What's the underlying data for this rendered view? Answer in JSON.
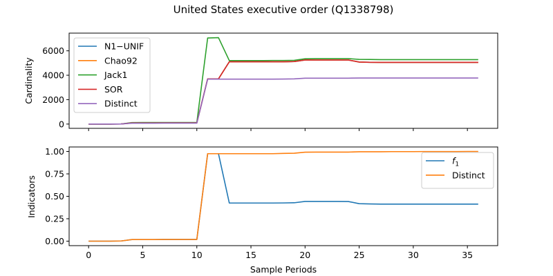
{
  "figure": {
    "title": "United States executive order (Q1338798)"
  },
  "chart_data": [
    {
      "type": "line",
      "ylabel": "Cardinality",
      "xlabel": "",
      "xlim": [
        -1.8,
        37.8
      ],
      "ylim": [
        -350,
        7450
      ],
      "xticks": [
        0,
        5,
        10,
        15,
        20,
        25,
        30,
        35
      ],
      "show_xtick_labels": false,
      "yticks": [
        0,
        2000,
        4000,
        6000
      ],
      "ytick_labels": [
        "0",
        "2000",
        "4000",
        "6000"
      ],
      "legend_position": "upper-left",
      "grid": false,
      "x": [
        0,
        1,
        2,
        3,
        4,
        5,
        6,
        7,
        8,
        9,
        10,
        11,
        12,
        13,
        14,
        15,
        16,
        17,
        18,
        19,
        20,
        21,
        22,
        23,
        24,
        25,
        26,
        27,
        28,
        29,
        30,
        31,
        32,
        33,
        34,
        35,
        36
      ],
      "series": [
        {
          "name": "N1−UNIF",
          "color": "#1f77b4",
          "values": [
            0,
            0,
            0,
            5,
            90,
            95,
            95,
            100,
            100,
            100,
            100,
            3700,
            3700,
            5100,
            5100,
            5100,
            5100,
            5100,
            5100,
            5120,
            5250,
            5250,
            5250,
            5250,
            5250,
            5080,
            5060,
            5050,
            5050,
            5050,
            5050,
            5050,
            5050,
            5050,
            5050,
            5050,
            5050
          ]
        },
        {
          "name": "Chao92",
          "color": "#ff7f0e",
          "values": [
            0,
            0,
            0,
            5,
            90,
            95,
            95,
            100,
            100,
            100,
            100,
            3700,
            3700,
            5100,
            5100,
            5100,
            5100,
            5100,
            5100,
            5120,
            5250,
            5250,
            5250,
            5250,
            5250,
            5080,
            5060,
            5050,
            5050,
            5050,
            5050,
            5050,
            5050,
            5050,
            5050,
            5050,
            5050
          ]
        },
        {
          "name": "Jack1",
          "color": "#2ca02c",
          "values": [
            0,
            0,
            0,
            10,
            120,
            125,
            125,
            130,
            130,
            130,
            130,
            7050,
            7080,
            5200,
            5200,
            5200,
            5200,
            5210,
            5210,
            5220,
            5350,
            5360,
            5360,
            5360,
            5360,
            5300,
            5290,
            5280,
            5280,
            5280,
            5280,
            5280,
            5280,
            5280,
            5280,
            5280,
            5280
          ]
        },
        {
          "name": "SOR",
          "color": "#d62728",
          "values": [
            0,
            0,
            0,
            5,
            90,
            95,
            95,
            100,
            100,
            100,
            100,
            3700,
            3700,
            5100,
            5100,
            5100,
            5100,
            5100,
            5100,
            5120,
            5250,
            5250,
            5250,
            5250,
            5250,
            5080,
            5060,
            5050,
            5050,
            5050,
            5050,
            5050,
            5050,
            5050,
            5050,
            5050,
            5050
          ]
        },
        {
          "name": "Distinct",
          "color": "#9467bd",
          "values": [
            0,
            0,
            0,
            5,
            70,
            72,
            72,
            75,
            75,
            75,
            75,
            3680,
            3680,
            3680,
            3680,
            3680,
            3680,
            3680,
            3690,
            3700,
            3760,
            3760,
            3760,
            3760,
            3760,
            3770,
            3770,
            3770,
            3770,
            3770,
            3770,
            3770,
            3770,
            3770,
            3770,
            3770,
            3770
          ]
        }
      ]
    },
    {
      "type": "line",
      "ylabel": "Indicators",
      "xlabel": "Sample Periods",
      "xlim": [
        -1.8,
        37.8
      ],
      "ylim": [
        -0.05,
        1.05
      ],
      "xticks": [
        0,
        5,
        10,
        15,
        20,
        25,
        30,
        35
      ],
      "xtick_labels": [
        "0",
        "5",
        "10",
        "15",
        "20",
        "25",
        "30",
        "35"
      ],
      "show_xtick_labels": true,
      "yticks": [
        0.0,
        0.25,
        0.5,
        0.75,
        1.0
      ],
      "ytick_labels": [
        "0.00",
        "0.25",
        "0.50",
        "0.75",
        "1.00"
      ],
      "legend_position": "upper-right",
      "grid": false,
      "x": [
        0,
        1,
        2,
        3,
        4,
        5,
        6,
        7,
        8,
        9,
        10,
        11,
        12,
        13,
        14,
        15,
        16,
        17,
        18,
        19,
        20,
        21,
        22,
        23,
        24,
        25,
        26,
        27,
        28,
        29,
        30,
        31,
        32,
        33,
        34,
        35,
        36
      ],
      "series": [
        {
          "name": "f1",
          "display_base": "f",
          "display_sub": "1",
          "color": "#1f77b4",
          "values": [
            0,
            0,
            0,
            0.002,
            0.018,
            0.018,
            0.018,
            0.019,
            0.019,
            0.019,
            0.019,
            0.975,
            0.975,
            0.425,
            0.425,
            0.425,
            0.425,
            0.425,
            0.426,
            0.428,
            0.443,
            0.443,
            0.443,
            0.443,
            0.442,
            0.418,
            0.415,
            0.413,
            0.413,
            0.413,
            0.413,
            0.413,
            0.413,
            0.413,
            0.413,
            0.413,
            0.413
          ]
        },
        {
          "name": "Distinct",
          "color": "#ff7f0e",
          "values": [
            0,
            0,
            0,
            0.002,
            0.018,
            0.018,
            0.018,
            0.019,
            0.019,
            0.019,
            0.019,
            0.975,
            0.975,
            0.975,
            0.975,
            0.975,
            0.975,
            0.975,
            0.978,
            0.98,
            0.992,
            0.993,
            0.993,
            0.993,
            0.993,
            0.997,
            0.997,
            0.997,
            0.998,
            0.998,
            0.998,
            0.999,
            0.999,
            0.999,
            0.999,
            1.0,
            1.0
          ]
        }
      ]
    }
  ]
}
